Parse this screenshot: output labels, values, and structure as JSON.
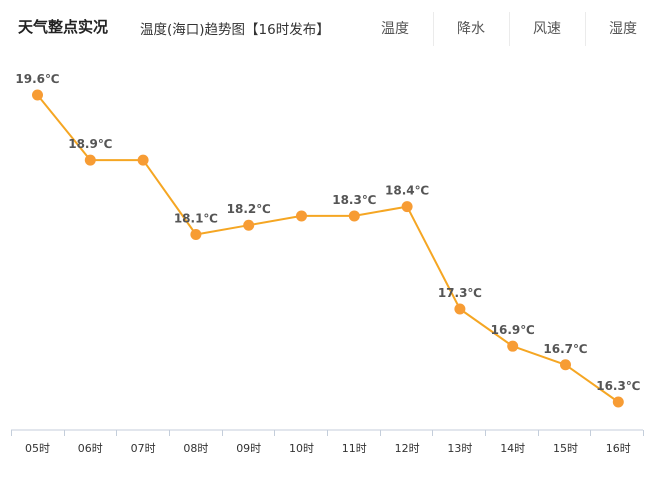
{
  "header": {
    "title": "天气整点实况",
    "subtitle": "温度(海口)趋势图【16时发布】",
    "tabs": [
      {
        "label": "温度"
      },
      {
        "label": "降水"
      },
      {
        "label": "风速"
      },
      {
        "label": "湿度"
      }
    ]
  },
  "chart_data": {
    "type": "line",
    "title": "",
    "xlabel": "",
    "ylabel": "",
    "categories": [
      "05时",
      "06时",
      "07时",
      "08时",
      "09时",
      "10时",
      "11时",
      "12时",
      "13时",
      "14时",
      "15时",
      "16时"
    ],
    "series": [
      {
        "values": [
          19.6,
          18.9,
          18.9,
          18.1,
          18.2,
          18.3,
          18.3,
          18.4,
          17.3,
          16.9,
          16.7,
          16.3
        ],
        "point_labels": [
          "19.6℃",
          "18.9℃",
          null,
          "18.1℃",
          "18.2℃",
          null,
          "18.3℃",
          "18.4℃",
          "17.3℃",
          "16.9℃",
          "16.7℃",
          "16.3℃"
        ]
      }
    ],
    "y_axis_visible": false,
    "grid": false,
    "legend": "none",
    "colors": {
      "line": "#f5a623",
      "marker": "#f79c34",
      "axis": "#c4cedb"
    }
  }
}
